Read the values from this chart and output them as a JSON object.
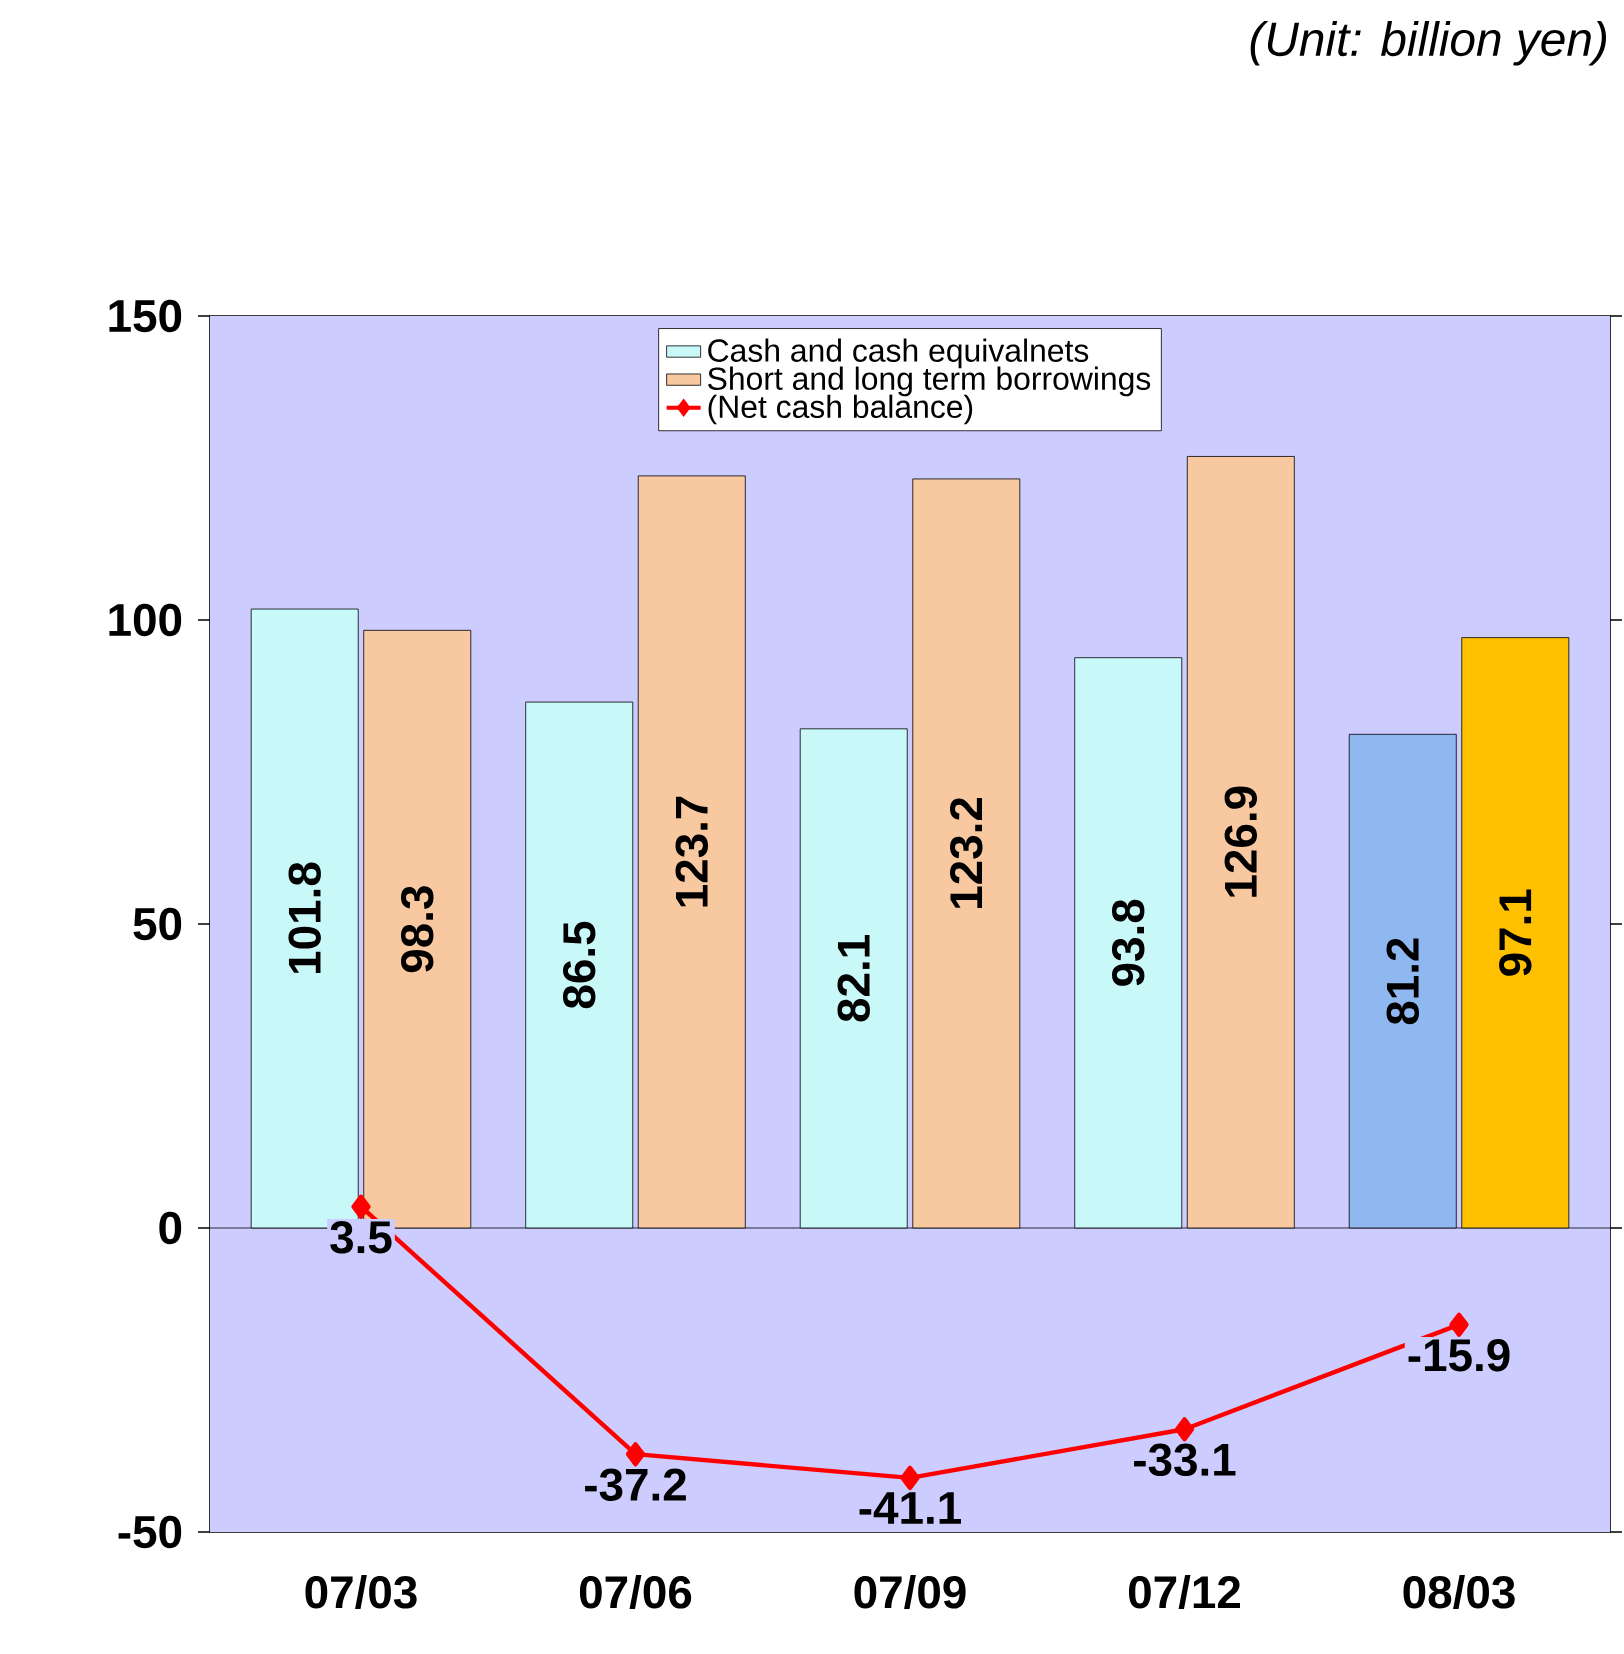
{
  "chart_data": {
    "type": "bar",
    "annotations": [
      "(Unit: billion yen)"
    ],
    "categories": [
      "07/03",
      "07/06",
      "07/09",
      "07/12",
      "08/03"
    ],
    "series": [
      {
        "name": "Cash and cash equivalnets",
        "colors": [
          "#c8f8f8",
          "#c8f8f8",
          "#c8f8f8",
          "#c8f8f8",
          "#90b8f0"
        ],
        "values": [
          101.8,
          86.5,
          82.1,
          93.8,
          81.2
        ]
      },
      {
        "name": "Short and long term borrowings",
        "colors": [
          "#f8c8a0",
          "#f8c8a0",
          "#f8c8a0",
          "#f8c8a0",
          "#ffc000"
        ],
        "values": [
          98.3,
          123.7,
          123.2,
          126.9,
          97.1
        ]
      },
      {
        "name": "(Net cash balance)",
        "type": "line",
        "color": "#ff0000",
        "marker": "diamond",
        "values": [
          3.5,
          -37.2,
          -41.1,
          -33.1,
          -15.9
        ]
      }
    ],
    "ylim": [
      -50,
      150
    ],
    "yticks": [
      -50,
      0,
      50,
      100,
      150
    ],
    "data_labels": true,
    "legend": "top"
  }
}
